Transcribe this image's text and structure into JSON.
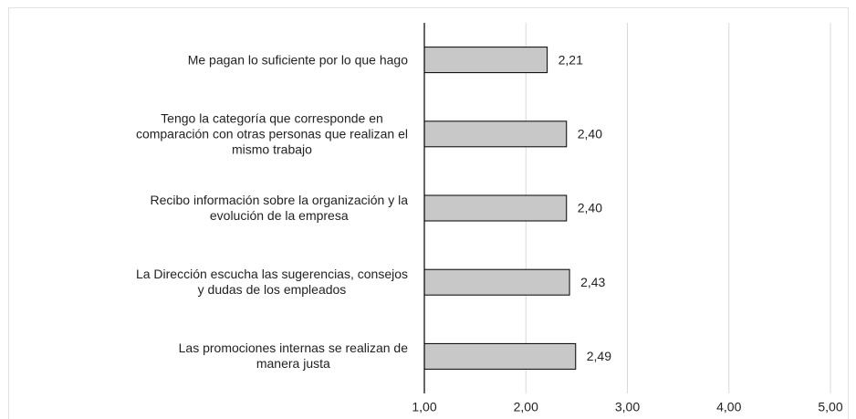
{
  "chart_data": {
    "type": "bar",
    "orientation": "horizontal",
    "categories": [
      "Me pagan lo suficiente por lo que hago",
      "Tengo la categoría que corresponde en\ncomparación con otras personas que realizan el\nmismo trabajo",
      "Recibo información sobre la organización y la\nevolución de la empresa",
      "La Dirección escucha las sugerencias, consejos\ny dudas de los empleados",
      "Las promociones internas se realizan de\nmanera justa"
    ],
    "values": [
      2.21,
      2.4,
      2.4,
      2.43,
      2.49
    ],
    "value_labels": [
      "2,21",
      "2,40",
      "2,40",
      "2,43",
      "2,49"
    ],
    "color": "#c8c8c8",
    "xlim": [
      1,
      5
    ],
    "xticks": [
      {
        "value": 1,
        "label": "1,00"
      },
      {
        "value": 2,
        "label": "2,00"
      },
      {
        "value": 3,
        "label": "3,00"
      },
      {
        "value": 4,
        "label": "4,00"
      },
      {
        "value": 5,
        "label": "5,00"
      }
    ],
    "grid": true
  }
}
